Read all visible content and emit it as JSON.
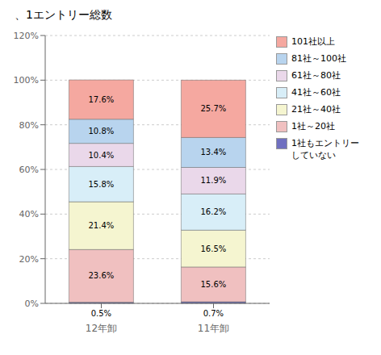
{
  "chart_data": {
    "type": "bar",
    "title": "、1エントリー総数",
    "categories": [
      "12年卸",
      "11年卸"
    ],
    "stacked": true,
    "data_labels": true,
    "grid": true,
    "legend": "right",
    "ylim": [
      0,
      120
    ],
    "yticks": [
      {
        "value": 0,
        "label": "0%"
      },
      {
        "value": 20,
        "label": "20%"
      },
      {
        "value": 40,
        "label": "40%"
      },
      {
        "value": 60,
        "label": "60%"
      },
      {
        "value": 80,
        "label": "80%"
      },
      {
        "value": 100,
        "label": "100%"
      },
      {
        "value": 120,
        "label": "120%"
      }
    ],
    "series": [
      {
        "name": "1社もエントリー\nしていない",
        "color": "#7070c0",
        "values": [
          0.5,
          0.7
        ],
        "value_labels": [
          "0.5%",
          "0.7%"
        ]
      },
      {
        "name": "1社～20社",
        "color": "#f0c0c0",
        "values": [
          23.6,
          15.6
        ],
        "value_labels": [
          "23.6%",
          "15.6%"
        ]
      },
      {
        "name": "21社～40社",
        "color": "#f5f5d0",
        "values": [
          21.4,
          16.5
        ],
        "value_labels": [
          "21.4%",
          "16.5%"
        ]
      },
      {
        "name": "41社～60社",
        "color": "#d8eef8",
        "values": [
          15.8,
          16.2
        ],
        "value_labels": [
          "15.8%",
          "16.2%"
        ]
      },
      {
        "name": "61社～80社",
        "color": "#ead8ea",
        "values": [
          10.4,
          11.9
        ],
        "value_labels": [
          "10.4%",
          "11.9%"
        ]
      },
      {
        "name": "81社～100社",
        "color": "#b8d4ee",
        "values": [
          10.8,
          13.4
        ],
        "value_labels": [
          "10.8%",
          "13.4%"
        ]
      },
      {
        "name": "101社以上",
        "color": "#f5a8a0",
        "values": [
          17.6,
          25.7
        ],
        "value_labels": [
          "17.6%",
          "25.7%"
        ]
      }
    ]
  }
}
